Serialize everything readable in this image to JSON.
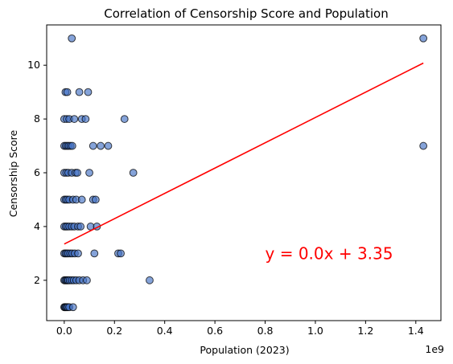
{
  "chart_data": {
    "type": "scatter",
    "title": "Correlation of Censorship Score and Population",
    "xlabel": "Population (2023)",
    "ylabel": "Censorship Score",
    "x_offset_label": "1e9",
    "xlim": [
      -0.07,
      1.5
    ],
    "ylim": [
      0.5,
      11.5
    ],
    "x_ticks": [
      0.0,
      0.2,
      0.4,
      0.6,
      0.8,
      1.0,
      1.2,
      1.4
    ],
    "x_tick_labels": [
      "0.0",
      "0.2",
      "0.4",
      "0.6",
      "0.8",
      "1.0",
      "1.2",
      "1.4"
    ],
    "y_ticks": [
      2,
      4,
      6,
      8,
      10
    ],
    "y_tick_labels": [
      "2",
      "4",
      "6",
      "8",
      "10"
    ],
    "grid": false,
    "marker_color": "#4472c4",
    "marker_edge_color": "#000000",
    "regression_color": "#ff0000",
    "series": [
      {
        "points": [
          [
            0.0,
            1
          ],
          [
            0.003,
            1
          ],
          [
            0.006,
            1
          ],
          [
            0.01,
            1
          ],
          [
            0.014,
            1
          ],
          [
            0.02,
            1
          ],
          [
            0.035,
            1
          ],
          [
            0.0,
            2
          ],
          [
            0.004,
            2
          ],
          [
            0.008,
            2
          ],
          [
            0.012,
            2
          ],
          [
            0.016,
            2
          ],
          [
            0.022,
            2
          ],
          [
            0.03,
            2
          ],
          [
            0.038,
            2
          ],
          [
            0.048,
            2
          ],
          [
            0.06,
            2
          ],
          [
            0.075,
            2
          ],
          [
            0.09,
            2
          ],
          [
            0.34,
            2
          ],
          [
            0.0,
            3
          ],
          [
            0.005,
            3
          ],
          [
            0.01,
            3
          ],
          [
            0.016,
            3
          ],
          [
            0.024,
            3
          ],
          [
            0.032,
            3
          ],
          [
            0.042,
            3
          ],
          [
            0.055,
            3
          ],
          [
            0.12,
            3
          ],
          [
            0.215,
            3
          ],
          [
            0.225,
            3
          ],
          [
            0.0,
            4
          ],
          [
            0.006,
            4
          ],
          [
            0.012,
            4
          ],
          [
            0.02,
            4
          ],
          [
            0.03,
            4
          ],
          [
            0.04,
            4
          ],
          [
            0.055,
            4
          ],
          [
            0.065,
            4
          ],
          [
            0.105,
            4
          ],
          [
            0.13,
            4
          ],
          [
            0.0,
            5
          ],
          [
            0.006,
            5
          ],
          [
            0.012,
            5
          ],
          [
            0.02,
            5
          ],
          [
            0.035,
            5
          ],
          [
            0.048,
            5
          ],
          [
            0.07,
            5
          ],
          [
            0.115,
            5
          ],
          [
            0.125,
            5
          ],
          [
            0.0,
            6
          ],
          [
            0.008,
            6
          ],
          [
            0.016,
            6
          ],
          [
            0.03,
            6
          ],
          [
            0.045,
            6
          ],
          [
            0.052,
            6
          ],
          [
            0.1,
            6
          ],
          [
            0.275,
            6
          ],
          [
            0.0,
            7
          ],
          [
            0.006,
            7
          ],
          [
            0.012,
            7
          ],
          [
            0.018,
            7
          ],
          [
            0.025,
            7
          ],
          [
            0.032,
            7
          ],
          [
            0.115,
            7
          ],
          [
            0.145,
            7
          ],
          [
            0.175,
            7
          ],
          [
            1.43,
            7
          ],
          [
            0.0,
            8
          ],
          [
            0.01,
            8
          ],
          [
            0.02,
            8
          ],
          [
            0.04,
            8
          ],
          [
            0.07,
            8
          ],
          [
            0.085,
            8
          ],
          [
            0.24,
            8
          ],
          [
            0.005,
            9
          ],
          [
            0.012,
            9
          ],
          [
            0.06,
            9
          ],
          [
            0.095,
            9
          ],
          [
            0.03,
            11
          ],
          [
            1.43,
            11
          ]
        ]
      }
    ],
    "regression": {
      "x_range": [
        0.0,
        1.43
      ],
      "y_range": [
        3.35,
        10.08
      ],
      "label": "y = 0.0x + 3.35",
      "label_position": [
        0.8,
        3.0
      ]
    }
  }
}
